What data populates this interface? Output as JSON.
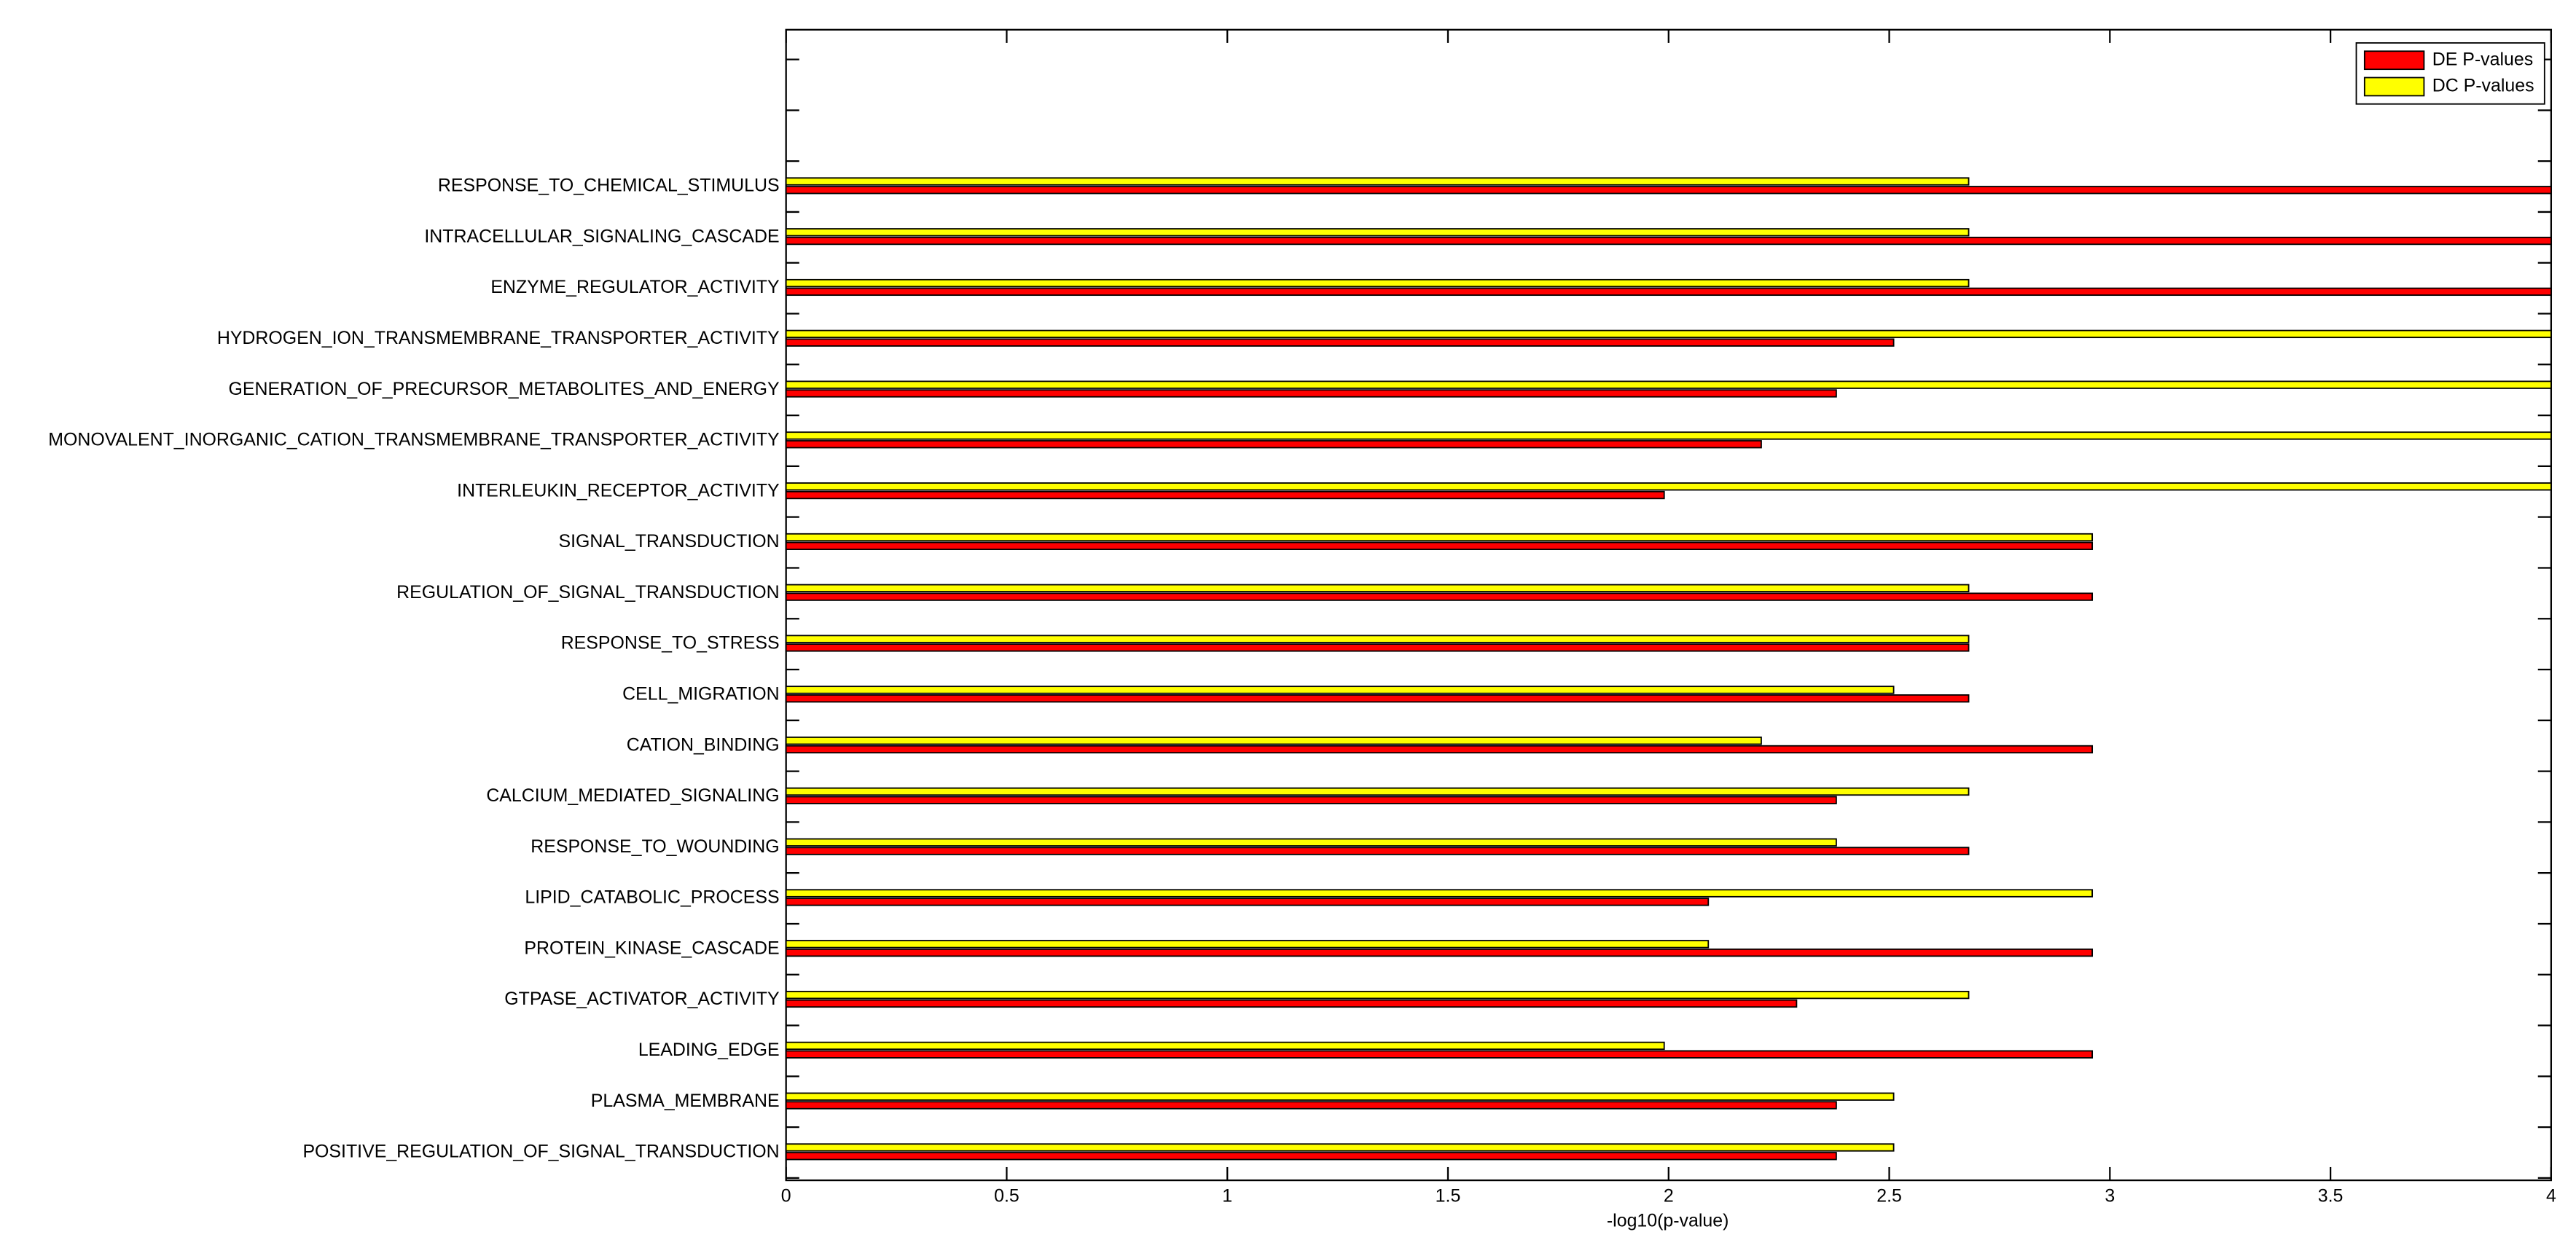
{
  "chart_data": {
    "type": "barh",
    "xlabel": "-log10(p-value)",
    "categories": [
      "RESPONSE_TO_CHEMICAL_STIMULUS",
      "INTRACELLULAR_SIGNALING_CASCADE",
      "ENZYME_REGULATOR_ACTIVITY",
      "HYDROGEN_ION_TRANSMEMBRANE_TRANSPORTER_ACTIVITY",
      "GENERATION_OF_PRECURSOR_METABOLITES_AND_ENERGY",
      "MONOVALENT_INORGANIC_CATION_TRANSMEMBRANE_TRANSPORTER_ACTIVITY",
      "INTERLEUKIN_RECEPTOR_ACTIVITY",
      "SIGNAL_TRANSDUCTION",
      "REGULATION_OF_SIGNAL_TRANSDUCTION",
      "RESPONSE_TO_STRESS",
      "CELL_MIGRATION",
      "CATION_BINDING",
      "CALCIUM_MEDIATED_SIGNALING",
      "RESPONSE_TO_WOUNDING",
      "LIPID_CATABOLIC_PROCESS",
      "PROTEIN_KINASE_CASCADE",
      "GTPASE_ACTIVATOR_ACTIVITY",
      "LEADING_EDGE",
      "PLASMA_MEMBRANE",
      "POSITIVE_REGULATION_OF_SIGNAL_TRANSDUCTION"
    ],
    "series": [
      {
        "name": "DE P-values",
        "color": "#ff0000",
        "values": [
          4,
          4,
          4,
          2.51,
          2.38,
          2.21,
          1.99,
          2.96,
          2.96,
          2.68,
          2.68,
          2.96,
          2.38,
          2.68,
          2.09,
          2.96,
          2.29,
          2.96,
          2.38,
          2.38
        ]
      },
      {
        "name": "DC P-values",
        "color": "#ffff00",
        "values": [
          2.68,
          2.68,
          2.68,
          4,
          4,
          4,
          4,
          2.96,
          2.68,
          2.68,
          2.51,
          2.21,
          2.68,
          2.38,
          2.96,
          2.09,
          2.68,
          1.99,
          2.51,
          2.51
        ]
      }
    ],
    "xlim": [
      0,
      4
    ],
    "xticks": [
      0,
      0.5,
      1,
      1.5,
      2,
      2.5,
      3,
      3.5,
      4
    ],
    "legend": "upper right"
  }
}
